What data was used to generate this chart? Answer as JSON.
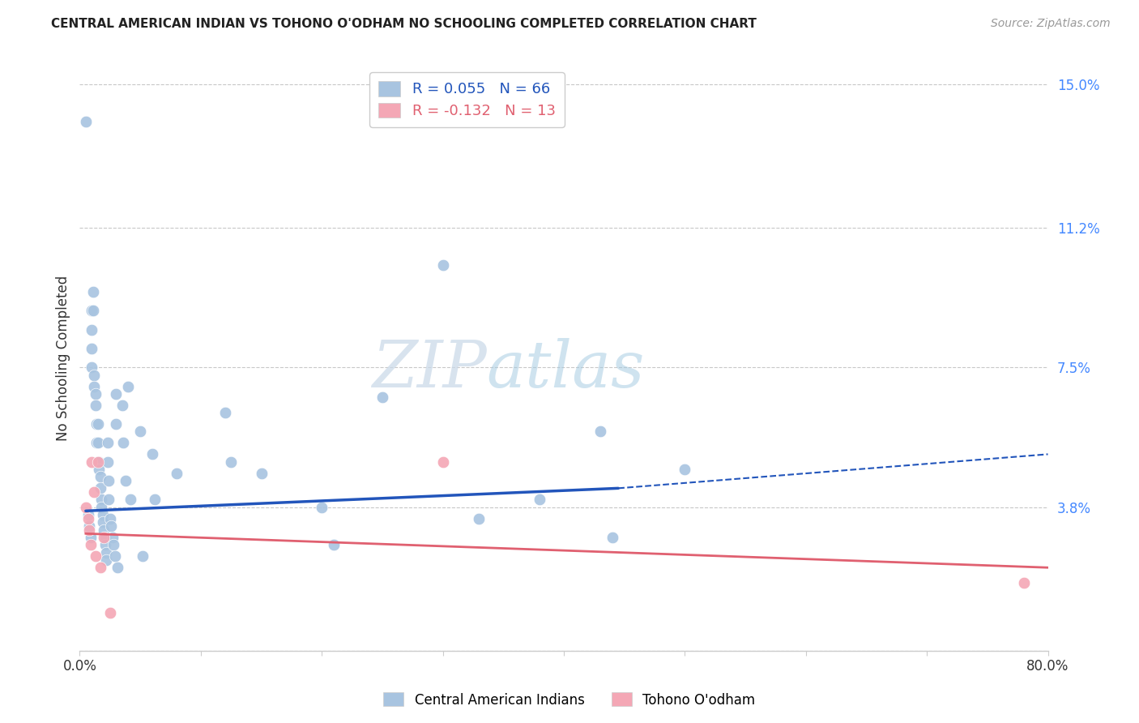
{
  "title": "CENTRAL AMERICAN INDIAN VS TOHONO O'ODHAM NO SCHOOLING COMPLETED CORRELATION CHART",
  "source": "Source: ZipAtlas.com",
  "ylabel": "No Schooling Completed",
  "xlim": [
    0.0,
    0.8
  ],
  "ylim": [
    0.0,
    0.155
  ],
  "yticks": [
    0.0,
    0.038,
    0.075,
    0.112,
    0.15
  ],
  "ytick_labels": [
    "",
    "3.8%",
    "7.5%",
    "11.2%",
    "15.0%"
  ],
  "xticks": [
    0.0,
    0.1,
    0.2,
    0.3,
    0.4,
    0.5,
    0.6,
    0.7,
    0.8
  ],
  "xtick_labels": [
    "0.0%",
    "",
    "",
    "",
    "",
    "",
    "",
    "",
    "80.0%"
  ],
  "blue_R": 0.055,
  "blue_N": 66,
  "pink_R": -0.132,
  "pink_N": 13,
  "legend_label_blue": "Central American Indians",
  "legend_label_pink": "Tohono O'odham",
  "blue_color": "#a8c4e0",
  "pink_color": "#f4a7b5",
  "blue_line_color": "#2255bb",
  "pink_line_color": "#e06070",
  "background_color": "#ffffff",
  "watermark_part1": "ZIP",
  "watermark_part2": "atlas",
  "blue_x": [
    0.005,
    0.007,
    0.008,
    0.009,
    0.01,
    0.01,
    0.01,
    0.01,
    0.011,
    0.011,
    0.012,
    0.012,
    0.013,
    0.013,
    0.014,
    0.014,
    0.015,
    0.015,
    0.015,
    0.016,
    0.016,
    0.017,
    0.017,
    0.018,
    0.018,
    0.019,
    0.019,
    0.02,
    0.021,
    0.021,
    0.022,
    0.022,
    0.023,
    0.023,
    0.024,
    0.024,
    0.025,
    0.026,
    0.027,
    0.028,
    0.029,
    0.03,
    0.03,
    0.031,
    0.035,
    0.036,
    0.038,
    0.04,
    0.042,
    0.05,
    0.052,
    0.06,
    0.062,
    0.08,
    0.12,
    0.125,
    0.15,
    0.2,
    0.21,
    0.25,
    0.3,
    0.33,
    0.38,
    0.43,
    0.44,
    0.5
  ],
  "blue_y": [
    0.14,
    0.036,
    0.033,
    0.03,
    0.09,
    0.085,
    0.08,
    0.075,
    0.095,
    0.09,
    0.073,
    0.07,
    0.068,
    0.065,
    0.06,
    0.055,
    0.06,
    0.055,
    0.05,
    0.05,
    0.048,
    0.046,
    0.043,
    0.04,
    0.038,
    0.036,
    0.034,
    0.032,
    0.03,
    0.028,
    0.026,
    0.024,
    0.055,
    0.05,
    0.045,
    0.04,
    0.035,
    0.033,
    0.03,
    0.028,
    0.025,
    0.068,
    0.06,
    0.022,
    0.065,
    0.055,
    0.045,
    0.07,
    0.04,
    0.058,
    0.025,
    0.052,
    0.04,
    0.047,
    0.063,
    0.05,
    0.047,
    0.038,
    0.028,
    0.067,
    0.102,
    0.035,
    0.04,
    0.058,
    0.03,
    0.048
  ],
  "pink_x": [
    0.005,
    0.007,
    0.008,
    0.009,
    0.01,
    0.012,
    0.013,
    0.015,
    0.017,
    0.02,
    0.025,
    0.3,
    0.78
  ],
  "pink_y": [
    0.038,
    0.035,
    0.032,
    0.028,
    0.05,
    0.042,
    0.025,
    0.05,
    0.022,
    0.03,
    0.01,
    0.05,
    0.018
  ],
  "blue_line_x0": 0.005,
  "blue_line_x_solid_end": 0.445,
  "blue_line_x_dash_end": 0.8,
  "blue_line_y0": 0.037,
  "blue_line_y_solid_end": 0.043,
  "blue_line_y_dash_end": 0.052,
  "pink_line_x0": 0.005,
  "pink_line_x1": 0.8,
  "pink_line_y0": 0.031,
  "pink_line_y1": 0.022
}
